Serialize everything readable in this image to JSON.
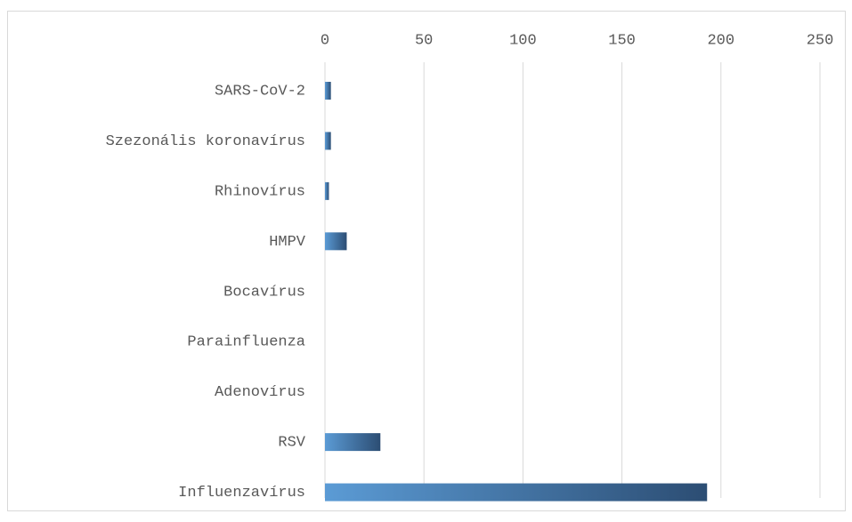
{
  "chart_data": {
    "type": "hbar",
    "categories": [
      "SARS-CoV-2",
      "Szezonális koronavírus",
      "Rhinovírus",
      "HMPV",
      "Bocavírus",
      "Parainfluenza",
      "Adenovírus",
      "RSV",
      "Influenzavírus"
    ],
    "values": [
      3,
      3,
      2,
      11,
      0,
      0,
      0,
      28,
      193
    ],
    "color": [
      "#5b9bd5",
      "#2c4d73"
    ],
    "xlim": [
      0,
      250
    ],
    "xticks": [
      0,
      50,
      100,
      150,
      200,
      250
    ],
    "grid": true
  }
}
